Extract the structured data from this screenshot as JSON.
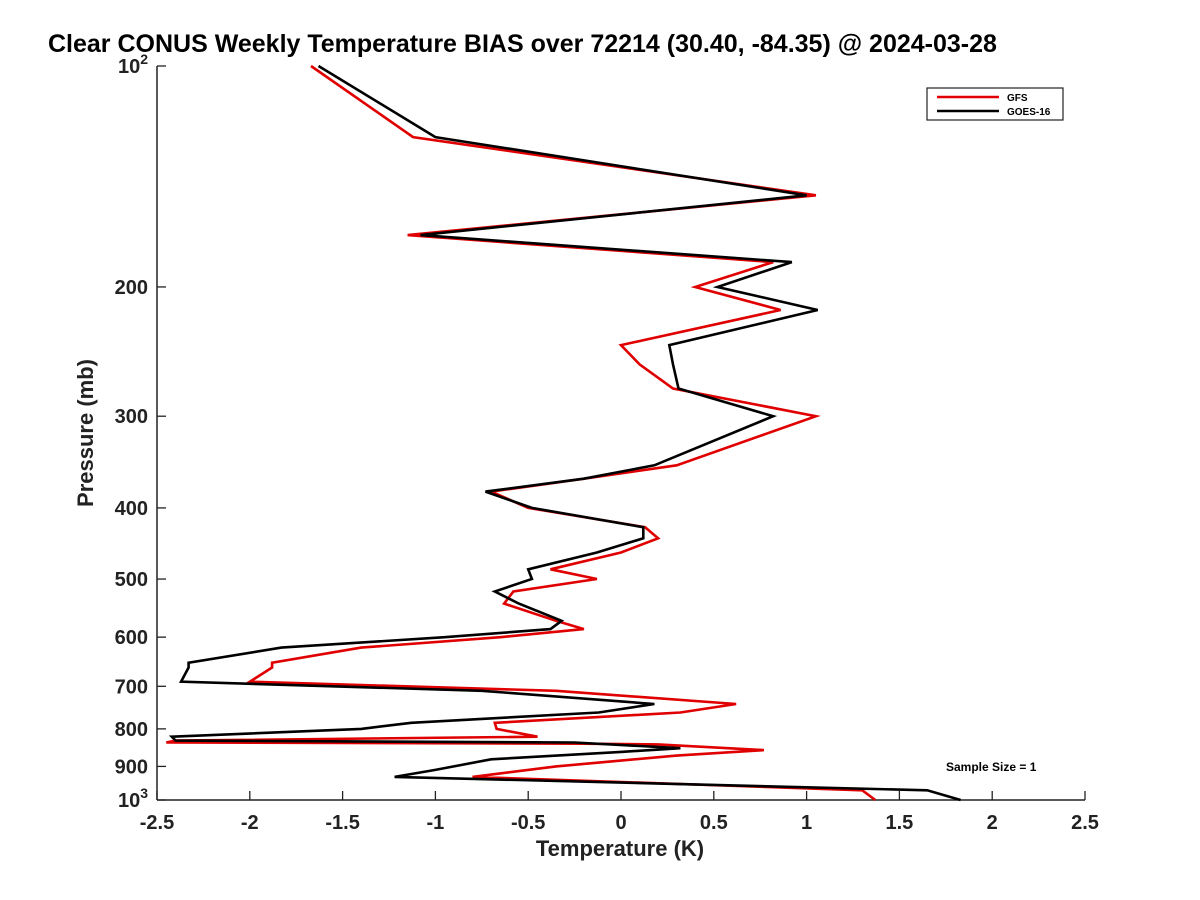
{
  "chart_data": {
    "type": "line",
    "title": "Clear CONUS Weekly Temperature BIAS over 72214 (30.40, -84.35) @ 2024-03-28",
    "xlabel": "Temperature (K)",
    "ylabel": "Pressure (mb)",
    "xlim": [
      -2.5,
      2.5
    ],
    "ylim": [
      100,
      1000
    ],
    "y_scale": "log",
    "y_reversed": true,
    "grid": false,
    "legend_position": "top-right",
    "annotation": "Sample Size = 1",
    "x_ticks": [
      -2.5,
      -2,
      -1.5,
      -1,
      -0.5,
      0,
      0.5,
      1,
      1.5,
      2,
      2.5
    ],
    "x_tick_labels": [
      "-2.5",
      "-2",
      "-1.5",
      "-1",
      "-0.5",
      "0",
      "0.5",
      "1",
      "1.5",
      "2",
      "2.5"
    ],
    "y_ticks": [
      100,
      200,
      300,
      400,
      500,
      600,
      700,
      800,
      900,
      1000
    ],
    "y_tick_labels": [
      {
        "base": "10",
        "exp": "2"
      },
      {
        "base": "200",
        "exp": ""
      },
      {
        "base": "300",
        "exp": ""
      },
      {
        "base": "400",
        "exp": ""
      },
      {
        "base": "500",
        "exp": ""
      },
      {
        "base": "600",
        "exp": ""
      },
      {
        "base": "700",
        "exp": ""
      },
      {
        "base": "800",
        "exp": ""
      },
      {
        "base": "900",
        "exp": ""
      },
      {
        "base": "10",
        "exp": "3"
      }
    ],
    "series": [
      {
        "name": "GFS",
        "color": "#e00000",
        "points": [
          [
            -1.67,
            100
          ],
          [
            -1.12,
            125
          ],
          [
            1.05,
            150
          ],
          [
            -1.15,
            170
          ],
          [
            0.82,
            185
          ],
          [
            0.4,
            200
          ],
          [
            0.86,
            215
          ],
          [
            0.0,
            240
          ],
          [
            0.1,
            255
          ],
          [
            0.28,
            275
          ],
          [
            1.05,
            300
          ],
          [
            0.3,
            350
          ],
          [
            -0.2,
            365
          ],
          [
            -0.7,
            380
          ],
          [
            -0.5,
            400
          ],
          [
            0.13,
            425
          ],
          [
            0.2,
            440
          ],
          [
            0.0,
            460
          ],
          [
            -0.38,
            485
          ],
          [
            -0.13,
            500
          ],
          [
            -0.58,
            520
          ],
          [
            -0.63,
            540
          ],
          [
            -0.35,
            570
          ],
          [
            -0.2,
            585
          ],
          [
            -0.65,
            600
          ],
          [
            -1.4,
            620
          ],
          [
            -1.88,
            650
          ],
          [
            -1.88,
            660
          ],
          [
            -2.0,
            690
          ],
          [
            -0.35,
            710
          ],
          [
            0.62,
            740
          ],
          [
            0.32,
            760
          ],
          [
            -0.68,
            785
          ],
          [
            -0.67,
            800
          ],
          [
            -0.45,
            820
          ],
          [
            -2.4,
            830
          ],
          [
            -2.45,
            835
          ],
          [
            -0.2,
            838
          ],
          [
            0.2,
            840
          ],
          [
            0.77,
            855
          ],
          [
            0.3,
            870
          ],
          [
            -0.35,
            900
          ],
          [
            -0.8,
            930
          ],
          [
            1.3,
            970
          ],
          [
            1.37,
            1000
          ]
        ]
      },
      {
        "name": "GOES-16",
        "color": "#000000",
        "points": [
          [
            -1.63,
            100
          ],
          [
            -1.0,
            125
          ],
          [
            1.0,
            150
          ],
          [
            -1.08,
            170
          ],
          [
            0.92,
            185
          ],
          [
            0.52,
            200
          ],
          [
            1.06,
            215
          ],
          [
            0.26,
            240
          ],
          [
            0.28,
            255
          ],
          [
            0.31,
            275
          ],
          [
            0.82,
            300
          ],
          [
            0.18,
            350
          ],
          [
            -0.2,
            365
          ],
          [
            -0.73,
            380
          ],
          [
            -0.48,
            400
          ],
          [
            0.12,
            425
          ],
          [
            0.12,
            440
          ],
          [
            -0.13,
            460
          ],
          [
            -0.5,
            485
          ],
          [
            -0.48,
            500
          ],
          [
            -0.68,
            520
          ],
          [
            -0.55,
            540
          ],
          [
            -0.32,
            570
          ],
          [
            -0.38,
            585
          ],
          [
            -0.95,
            600
          ],
          [
            -1.83,
            620
          ],
          [
            -2.33,
            650
          ],
          [
            -2.33,
            660
          ],
          [
            -2.37,
            690
          ],
          [
            -0.75,
            710
          ],
          [
            0.18,
            740
          ],
          [
            -0.12,
            760
          ],
          [
            -1.13,
            785
          ],
          [
            -1.4,
            800
          ],
          [
            -2.42,
            820
          ],
          [
            -2.4,
            830
          ],
          [
            -0.25,
            835
          ],
          [
            0.32,
            850
          ],
          [
            0.0,
            860
          ],
          [
            -0.7,
            880
          ],
          [
            -1.0,
            910
          ],
          [
            -1.22,
            930
          ],
          [
            1.65,
            970
          ],
          [
            1.83,
            1000
          ]
        ]
      }
    ]
  }
}
